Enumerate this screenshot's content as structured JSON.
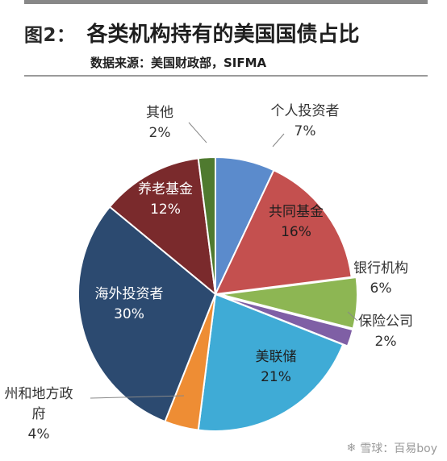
{
  "header": {
    "figure_no": "图2：",
    "title": "各类机构持有的美国国债占比",
    "source": "数据来源：美国财政部，SIFMA"
  },
  "chart_data": {
    "type": "pie",
    "title": "各类机构持有的美国国债占比",
    "unit": "%",
    "slices": [
      {
        "label": "个人投资者",
        "value": 7,
        "color": "#5b8bcc",
        "label_color": "#333333"
      },
      {
        "label": "共同基金",
        "value": 16,
        "color": "#c4504f",
        "label_color": "#1e1e1e"
      },
      {
        "label": "银行机构",
        "value": 6,
        "color": "#8db653",
        "label_color": "#333333"
      },
      {
        "label": "保险公司",
        "value": 2,
        "color": "#7f5fa5",
        "label_color": "#333333"
      },
      {
        "label": "美联储",
        "value": 21,
        "color": "#3fabd6",
        "label_color": "#1e1e1e"
      },
      {
        "label": "州和地方政府",
        "value": 4,
        "color": "#ee8d34",
        "label_color": "#333333"
      },
      {
        "label": "海外投资者",
        "value": 30,
        "color": "#2c4a70",
        "label_color": "#ffffff"
      },
      {
        "label": "养老基金",
        "value": 12,
        "color": "#7a2a2c",
        "label_color": "#ffffff"
      },
      {
        "label": "其他",
        "value": 2,
        "color": "#4f7a2f",
        "label_color": "#333333"
      }
    ]
  },
  "watermark": {
    "logo_icon": "snowball-icon",
    "text": "雪球：百易boy"
  }
}
